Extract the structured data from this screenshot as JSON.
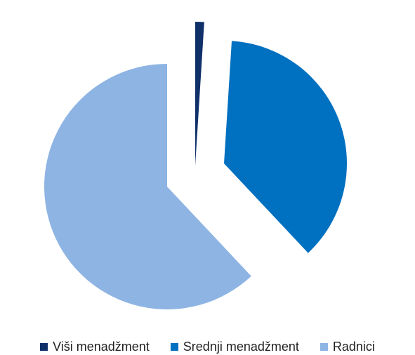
{
  "chart_data": {
    "type": "pie",
    "title": "",
    "exploded": true,
    "legend_position": "bottom",
    "start_angle_deg": 0,
    "direction": "clockwise",
    "slices": [
      {
        "label": "Viši menadžment",
        "value": 1,
        "color": "#10306a"
      },
      {
        "label": "Srednji menadžment",
        "value": 37,
        "color": "#0070c0"
      },
      {
        "label": "Radnici",
        "value": 62,
        "color": "#8eb4e3"
      }
    ]
  }
}
